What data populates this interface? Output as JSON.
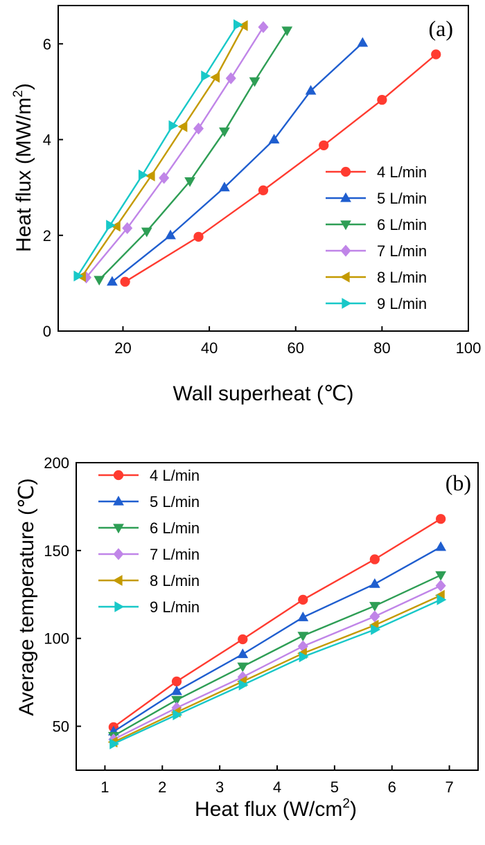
{
  "chart_data": [
    {
      "type": "line",
      "panel_label": "(a)",
      "xlabel": "Wall superheat (℃)",
      "ylabel_main": "Heat flux (MW/m",
      "ylabel_sup": "2",
      "ylabel_end": ")",
      "xlim": [
        5,
        100
      ],
      "ylim": [
        0,
        6.8
      ],
      "x_ticks": [
        20,
        40,
        60,
        80,
        100
      ],
      "y_ticks": [
        0,
        2,
        4,
        6
      ],
      "grid": false,
      "legend_position": "bottom-right",
      "series": [
        {
          "name": "4 L/min",
          "color": "#ff3b30",
          "marker": "circle",
          "x": [
            20.5,
            37.5,
            52.5,
            66.5,
            80,
            92.5
          ],
          "y": [
            1.03,
            1.97,
            2.94,
            3.88,
            4.83,
            5.78
          ]
        },
        {
          "name": "5 L/min",
          "color": "#1f5ecf",
          "marker": "triangle-up",
          "x": [
            17.5,
            31,
            43.5,
            55,
            63.5,
            75.5
          ],
          "y": [
            1.03,
            2.0,
            3.0,
            4.0,
            5.02,
            6.02
          ]
        },
        {
          "name": "6 L/min",
          "color": "#2e9e55",
          "marker": "triangle-down",
          "x": [
            14.5,
            25.5,
            35.5,
            43.5,
            50.5,
            58
          ],
          "y": [
            1.07,
            2.08,
            3.13,
            4.17,
            5.22,
            6.28
          ]
        },
        {
          "name": "7 L/min",
          "color": "#c085e8",
          "marker": "diamond",
          "x": [
            11.5,
            21,
            29.5,
            37.5,
            45,
            52.5
          ],
          "y": [
            1.12,
            2.15,
            3.2,
            4.23,
            5.28,
            6.35
          ]
        },
        {
          "name": "8 L/min",
          "color": "#c49a00",
          "marker": "triangle-left",
          "x": [
            10.5,
            18.5,
            26.5,
            34,
            41.5,
            48
          ],
          "y": [
            1.14,
            2.19,
            3.24,
            4.27,
            5.3,
            6.38
          ]
        },
        {
          "name": "9 L/min",
          "color": "#18c8c8",
          "marker": "triangle-right",
          "x": [
            9.5,
            17,
            24.5,
            31.5,
            39,
            46.5
          ],
          "y": [
            1.15,
            2.21,
            3.26,
            4.29,
            5.33,
            6.4
          ]
        }
      ]
    },
    {
      "type": "line",
      "panel_label": "(b)",
      "xlabel_main": "Heat flux (W/cm",
      "xlabel_sup": "2",
      "xlabel_end": ")",
      "ylabel": "Average temperature (℃)",
      "xlim": [
        0.5,
        7.5
      ],
      "ylim": [
        25,
        200
      ],
      "x_ticks": [
        1,
        2,
        3,
        4,
        5,
        6,
        7
      ],
      "y_ticks": [
        50,
        100,
        150,
        200
      ],
      "grid": false,
      "legend_position": "top-left",
      "series": [
        {
          "name": "4 L/min",
          "color": "#ff3b30",
          "marker": "circle",
          "x": [
            1.15,
            2.25,
            3.4,
            4.45,
            5.7,
            6.85
          ],
          "y": [
            49.5,
            75.5,
            99.5,
            122,
            145,
            168
          ]
        },
        {
          "name": "5 L/min",
          "color": "#1f5ecf",
          "marker": "triangle-up",
          "x": [
            1.15,
            2.25,
            3.4,
            4.45,
            5.7,
            6.85
          ],
          "y": [
            47,
            70,
            91,
            112,
            131,
            152
          ]
        },
        {
          "name": "6 L/min",
          "color": "#2e9e55",
          "marker": "triangle-down",
          "x": [
            1.15,
            2.25,
            3.4,
            4.45,
            5.7,
            6.85
          ],
          "y": [
            44.5,
            65,
            84,
            101.5,
            118.5,
            136
          ]
        },
        {
          "name": "7 L/min",
          "color": "#c085e8",
          "marker": "diamond",
          "x": [
            1.15,
            2.25,
            3.4,
            4.45,
            5.7,
            6.85
          ],
          "y": [
            42.5,
            60.5,
            78,
            95.5,
            112.5,
            130
          ]
        },
        {
          "name": "8 L/min",
          "color": "#c49a00",
          "marker": "triangle-left",
          "x": [
            1.15,
            2.25,
            3.4,
            4.45,
            5.7,
            6.85
          ],
          "y": [
            41,
            58,
            75.5,
            91.5,
            107.5,
            124.5
          ]
        },
        {
          "name": "9 L/min",
          "color": "#18c8c8",
          "marker": "triangle-right",
          "x": [
            1.15,
            2.25,
            3.4,
            4.45,
            5.7,
            6.85
          ],
          "y": [
            40,
            56.5,
            73.5,
            89.5,
            105,
            122
          ]
        }
      ]
    }
  ]
}
